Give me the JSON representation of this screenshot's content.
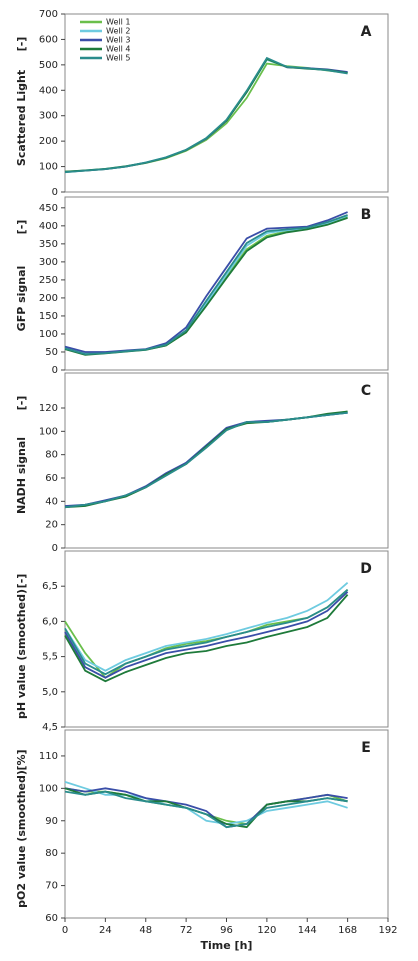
{
  "chart_data": [
    {
      "type": "line",
      "panel_label": "A",
      "ylabel": "Scattered Light",
      "yunit": "[-]",
      "x": [
        0,
        12,
        24,
        36,
        48,
        60,
        72,
        84,
        96,
        108,
        120,
        132,
        144,
        156,
        168
      ],
      "xlim": [
        0,
        192
      ],
      "ylim": [
        0,
        700
      ],
      "yticks": [
        0,
        100,
        200,
        300,
        400,
        500,
        600,
        700
      ],
      "legend": "upper left",
      "series": [
        {
          "name": "Well 1",
          "color": "#6abf4b",
          "values": [
            80,
            84,
            90,
            100,
            114,
            133,
            162,
            205,
            270,
            370,
            505,
            495,
            488,
            478,
            468
          ]
        },
        {
          "name": "Well 2",
          "color": "#6ecbe0",
          "values": [
            78,
            85,
            91,
            101,
            116,
            136,
            166,
            212,
            282,
            392,
            520,
            492,
            486,
            480,
            470
          ]
        },
        {
          "name": "Well 3",
          "color": "#3a4ea8",
          "values": [
            79,
            84,
            90,
            100,
            115,
            135,
            165,
            210,
            280,
            395,
            525,
            490,
            487,
            482,
            472
          ]
        },
        {
          "name": "Well 4",
          "color": "#1e7a3a",
          "values": [
            80,
            85,
            91,
            101,
            115,
            135,
            165,
            211,
            281,
            393,
            523,
            491,
            485,
            480,
            468
          ]
        },
        {
          "name": "Well 5",
          "color": "#2a8c8c",
          "values": [
            78,
            84,
            90,
            100,
            116,
            136,
            166,
            212,
            284,
            398,
            527,
            492,
            486,
            479,
            466
          ]
        }
      ]
    },
    {
      "type": "line",
      "panel_label": "B",
      "ylabel": "GFP signal",
      "yunit": "[-]",
      "x": [
        0,
        12,
        24,
        36,
        48,
        60,
        72,
        84,
        96,
        108,
        120,
        132,
        144,
        156,
        168
      ],
      "xlim": [
        0,
        192
      ],
      "ylim": [
        0,
        480
      ],
      "yticks": [
        0,
        50,
        100,
        150,
        200,
        250,
        300,
        350,
        400,
        450
      ],
      "series": [
        {
          "color": "#6abf4b",
          "values": [
            62,
            48,
            48,
            52,
            57,
            68,
            105,
            180,
            260,
            335,
            372,
            385,
            392,
            405,
            425
          ]
        },
        {
          "color": "#6ecbe0",
          "values": [
            60,
            45,
            47,
            52,
            56,
            70,
            108,
            185,
            265,
            345,
            380,
            388,
            394,
            408,
            428
          ]
        },
        {
          "color": "#3a4ea8",
          "values": [
            65,
            50,
            50,
            54,
            58,
            74,
            118,
            205,
            285,
            365,
            392,
            395,
            398,
            415,
            438
          ]
        },
        {
          "color": "#1e7a3a",
          "values": [
            58,
            42,
            46,
            51,
            56,
            68,
            104,
            178,
            255,
            330,
            368,
            382,
            390,
            403,
            422
          ]
        },
        {
          "color": "#2a8c8c",
          "values": [
            60,
            44,
            47,
            52,
            57,
            70,
            110,
            192,
            272,
            352,
            385,
            390,
            395,
            410,
            430
          ]
        }
      ]
    },
    {
      "type": "line",
      "panel_label": "C",
      "ylabel": "NADH signal",
      "yunit": "[-]",
      "x": [
        0,
        12,
        24,
        36,
        48,
        60,
        72,
        84,
        96,
        108,
        120,
        132,
        144,
        156,
        168
      ],
      "xlim": [
        0,
        192
      ],
      "ylim": [
        0,
        150
      ],
      "yticks": [
        0,
        20,
        40,
        60,
        80,
        100,
        120
      ],
      "series": [
        {
          "color": "#6abf4b",
          "values": [
            35,
            37,
            40,
            45,
            52,
            63,
            72,
            87,
            101,
            108,
            108,
            110,
            112,
            114,
            117
          ]
        },
        {
          "color": "#6ecbe0",
          "values": [
            35,
            37,
            40,
            45,
            52,
            63,
            73,
            88,
            102,
            108,
            108,
            110,
            112,
            114,
            116
          ]
        },
        {
          "color": "#3a4ea8",
          "values": [
            36,
            37,
            41,
            45,
            53,
            64,
            73,
            88,
            103,
            108,
            109,
            110,
            112,
            114,
            116
          ]
        },
        {
          "color": "#1e7a3a",
          "values": [
            35,
            36,
            40,
            44,
            52,
            63,
            72,
            87,
            102,
            107,
            108,
            110,
            112,
            115,
            117
          ]
        },
        {
          "color": "#2a8c8c",
          "values": [
            35,
            37,
            40,
            45,
            52,
            62,
            72,
            86,
            101,
            108,
            108,
            110,
            112,
            114,
            116
          ]
        }
      ]
    },
    {
      "type": "line",
      "panel_label": "D",
      "ylabel": "pH value (smoothed)",
      "yunit": "[-]",
      "x": [
        0,
        12,
        24,
        36,
        48,
        60,
        72,
        84,
        96,
        108,
        120,
        132,
        144,
        156,
        168
      ],
      "xlim": [
        0,
        192
      ],
      "ylim": [
        4.5,
        7.0
      ],
      "yticks": [
        {
          "value": 4.5,
          "label": "4,5"
        },
        {
          "value": 5.0,
          "label": "5,0"
        },
        {
          "value": 5.5,
          "label": "5,5"
        },
        {
          "value": 6.0,
          "label": "6,0"
        },
        {
          "value": 6.5,
          "label": "6,5"
        }
      ],
      "series": [
        {
          "color": "#6abf4b",
          "values": [
            6.0,
            5.55,
            5.2,
            5.4,
            5.5,
            5.62,
            5.68,
            5.72,
            5.78,
            5.85,
            5.95,
            6.0,
            6.05,
            6.2,
            6.45
          ]
        },
        {
          "color": "#6ecbe0",
          "values": [
            5.9,
            5.45,
            5.3,
            5.45,
            5.55,
            5.65,
            5.7,
            5.75,
            5.82,
            5.9,
            5.98,
            6.05,
            6.15,
            6.3,
            6.55
          ]
        },
        {
          "color": "#3a4ea8",
          "values": [
            5.85,
            5.35,
            5.2,
            5.35,
            5.45,
            5.55,
            5.6,
            5.65,
            5.72,
            5.78,
            5.85,
            5.92,
            6.0,
            6.15,
            6.42
          ]
        },
        {
          "color": "#1e7a3a",
          "values": [
            5.8,
            5.3,
            5.15,
            5.28,
            5.38,
            5.48,
            5.55,
            5.58,
            5.65,
            5.7,
            5.78,
            5.85,
            5.92,
            6.05,
            6.38
          ]
        },
        {
          "color": "#2a8c8c",
          "values": [
            5.9,
            5.4,
            5.25,
            5.4,
            5.5,
            5.6,
            5.65,
            5.7,
            5.78,
            5.85,
            5.92,
            5.98,
            6.05,
            6.2,
            6.45
          ]
        }
      ]
    },
    {
      "type": "line",
      "panel_label": "E",
      "ylabel": "pO2 value (smoothed)",
      "yunit": "[%]",
      "x": [
        0,
        12,
        24,
        36,
        48,
        60,
        72,
        84,
        96,
        108,
        120,
        132,
        144,
        156,
        168
      ],
      "xlim": [
        0,
        192
      ],
      "ylim": [
        60,
        118
      ],
      "yticks": [
        60,
        70,
        80,
        90,
        100,
        110
      ],
      "xticks": [
        0,
        24,
        48,
        72,
        96,
        120,
        144,
        168,
        192
      ],
      "xlabel": "Time [h]",
      "series": [
        {
          "color": "#6abf4b",
          "values": [
            100,
            99,
            99,
            98,
            96,
            95,
            94,
            92,
            90,
            89,
            95,
            96,
            97,
            98,
            96
          ]
        },
        {
          "color": "#6ecbe0",
          "values": [
            102,
            100,
            98,
            98,
            97,
            95,
            94,
            90,
            89,
            90,
            93,
            94,
            95,
            96,
            94
          ]
        },
        {
          "color": "#3a4ea8",
          "values": [
            100,
            99,
            100,
            99,
            97,
            96,
            95,
            93,
            88,
            89,
            95,
            96,
            97,
            98,
            97
          ]
        },
        {
          "color": "#1e7a3a",
          "values": [
            100,
            98,
            99,
            98,
            96,
            96,
            94,
            92,
            89,
            88,
            95,
            96,
            96,
            97,
            96
          ]
        },
        {
          "color": "#2a8c8c",
          "values": [
            99,
            98,
            99,
            97,
            96,
            95,
            94,
            92,
            88,
            89,
            94,
            95,
            96,
            97,
            96
          ]
        }
      ]
    }
  ]
}
